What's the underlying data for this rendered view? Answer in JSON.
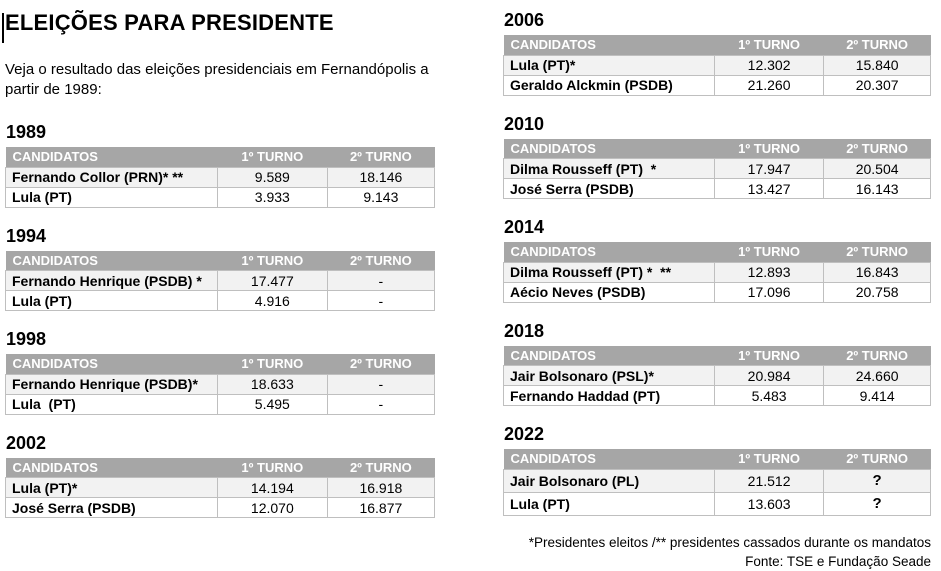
{
  "title": "ELEIÇÕES PARA PRESIDENTE",
  "intro": "Veja o resultado das eleições presidenciais em Fernandópolis a partir de 1989:",
  "table_headers": [
    "CANDIDATOS",
    "1º TURNO",
    "2º TURNO"
  ],
  "layout": {
    "left_years": [
      "1989",
      "1994",
      "1998",
      "2002"
    ],
    "right_years": [
      "2006",
      "2010",
      "2014",
      "2018",
      "2022"
    ]
  },
  "elections": [
    {
      "year": "1989",
      "rows": [
        {
          "candidate": "Fernando Collor (PRN)* **",
          "t1": "9.589",
          "t2": "18.146"
        },
        {
          "candidate": "Lula (PT)",
          "t1": "3.933",
          "t2": "9.143"
        }
      ]
    },
    {
      "year": "1994",
      "rows": [
        {
          "candidate": "Fernando Henrique (PSDB) *",
          "t1": "17.477",
          "t2": "-"
        },
        {
          "candidate": "Lula (PT)",
          "t1": "4.916",
          "t2": "-"
        }
      ]
    },
    {
      "year": "1998",
      "rows": [
        {
          "candidate": "Fernando Henrique (PSDB)*",
          "t1": "18.633",
          "t2": "-"
        },
        {
          "candidate": "Lula  (PT)",
          "t1": "5.495",
          "t2": "-"
        }
      ]
    },
    {
      "year": "2002",
      "rows": [
        {
          "candidate": "Lula (PT)*",
          "t1": "14.194",
          "t2": "16.918"
        },
        {
          "candidate": "José Serra (PSDB)",
          "t1": "12.070",
          "t2": "16.877"
        }
      ]
    },
    {
      "year": "2006",
      "rows": [
        {
          "candidate": "Lula (PT)*",
          "t1": "12.302",
          "t2": "15.840"
        },
        {
          "candidate": "Geraldo Alckmin (PSDB)",
          "t1": "21.260",
          "t2": "20.307"
        }
      ]
    },
    {
      "year": "2010",
      "rows": [
        {
          "candidate": "Dilma Rousseff (PT)  *",
          "t1": "17.947",
          "t2": "20.504"
        },
        {
          "candidate": "José Serra (PSDB)",
          "t1": "13.427",
          "t2": "16.143"
        }
      ]
    },
    {
      "year": "2014",
      "rows": [
        {
          "candidate": "Dilma Rousseff (PT) *  **",
          "t1": "12.893",
          "t2": "16.843"
        },
        {
          "candidate": "Aécio Neves (PSDB)",
          "t1": "17.096",
          "t2": "20.758"
        }
      ]
    },
    {
      "year": "2018",
      "rows": [
        {
          "candidate": "Jair Bolsonaro (PSL)*",
          "t1": "20.984",
          "t2": "24.660"
        },
        {
          "candidate": "Fernando Haddad (PT)",
          "t1": "5.483",
          "t2": "9.414"
        }
      ]
    },
    {
      "year": "2022",
      "rows": [
        {
          "candidate": "Jair Bolsonaro (PL)",
          "t1": "21.512",
          "t2": "?"
        },
        {
          "candidate": "Lula (PT)",
          "t1": "13.603",
          "t2": "?"
        }
      ]
    }
  ],
  "footnotes": [
    "*Presidentes eleitos /** presidentes cassados durante os mandatos",
    "Fonte: TSE e Fundação Seade"
  ],
  "colors": {
    "header_bg": "#a6a6a6",
    "band_bg": "#f2f2f2",
    "border": "#bfbfbf",
    "header_text": "#ffffff",
    "text": "#000000"
  }
}
